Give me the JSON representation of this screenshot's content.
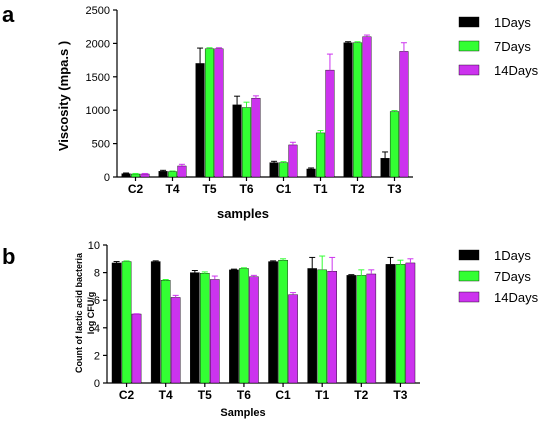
{
  "chart_data": [
    {
      "panel": "a",
      "type": "bar",
      "categories": [
        "C2",
        "T4",
        "T5",
        "T6",
        "C1",
        "T1",
        "T2",
        "T3"
      ],
      "series": [
        {
          "name": "1Days",
          "color": "#000000",
          "values": [
            50,
            85,
            1700,
            1080,
            215,
            120,
            2010,
            280
          ],
          "errors": [
            10,
            15,
            230,
            130,
            20,
            15,
            15,
            95
          ]
        },
        {
          "name": "7Days",
          "color": "#33ff33",
          "values": [
            45,
            80,
            1920,
            1040,
            215,
            660,
            2010,
            980
          ],
          "errors": [
            8,
            10,
            15,
            80,
            15,
            35,
            15,
            15
          ]
        },
        {
          "name": "14Days",
          "color": "#cc33ee",
          "values": [
            45,
            165,
            1920,
            1180,
            480,
            1600,
            2100,
            1880
          ],
          "errors": [
            8,
            25,
            15,
            35,
            40,
            240,
            25,
            130
          ]
        }
      ],
      "title": "",
      "xlabel": "samples",
      "ylabel": "Viscosity (mpa.s )",
      "ylim": [
        0,
        2500
      ],
      "yticks": [
        "0",
        "500",
        "1000",
        "1500",
        "2000",
        "2500"
      ],
      "legend": "right"
    },
    {
      "panel": "b",
      "type": "bar",
      "categories": [
        "C2",
        "T4",
        "T5",
        "T6",
        "C1",
        "T1",
        "T2",
        "T3"
      ],
      "series": [
        {
          "name": "1Days",
          "color": "#000000",
          "values": [
            8.7,
            8.8,
            8.0,
            8.2,
            8.8,
            8.3,
            7.8,
            8.6
          ],
          "errors": [
            0.1,
            0.05,
            0.15,
            0.05,
            0.05,
            0.8,
            0.05,
            0.5
          ]
        },
        {
          "name": "7Days",
          "color": "#33ff33",
          "values": [
            8.8,
            7.45,
            7.95,
            8.3,
            8.9,
            8.2,
            7.8,
            8.6
          ],
          "errors": [
            0.05,
            0.05,
            0.1,
            0.05,
            0.1,
            1.0,
            0.4,
            0.3
          ]
        },
        {
          "name": "14Days",
          "color": "#cc33ee",
          "values": [
            5.0,
            6.2,
            7.5,
            7.7,
            6.4,
            8.1,
            7.9,
            8.7
          ],
          "errors": [
            0.02,
            0.15,
            0.25,
            0.1,
            0.15,
            1.0,
            0.3,
            0.3
          ]
        }
      ],
      "title": "",
      "xlabel": "Samples",
      "ylabel": [
        "Count of lactic acid bacteria",
        "log CFU/g"
      ],
      "ylim": [
        0,
        10
      ],
      "yticks": [
        "0",
        "2",
        "4",
        "6",
        "8",
        "10"
      ],
      "legend": "right"
    }
  ]
}
